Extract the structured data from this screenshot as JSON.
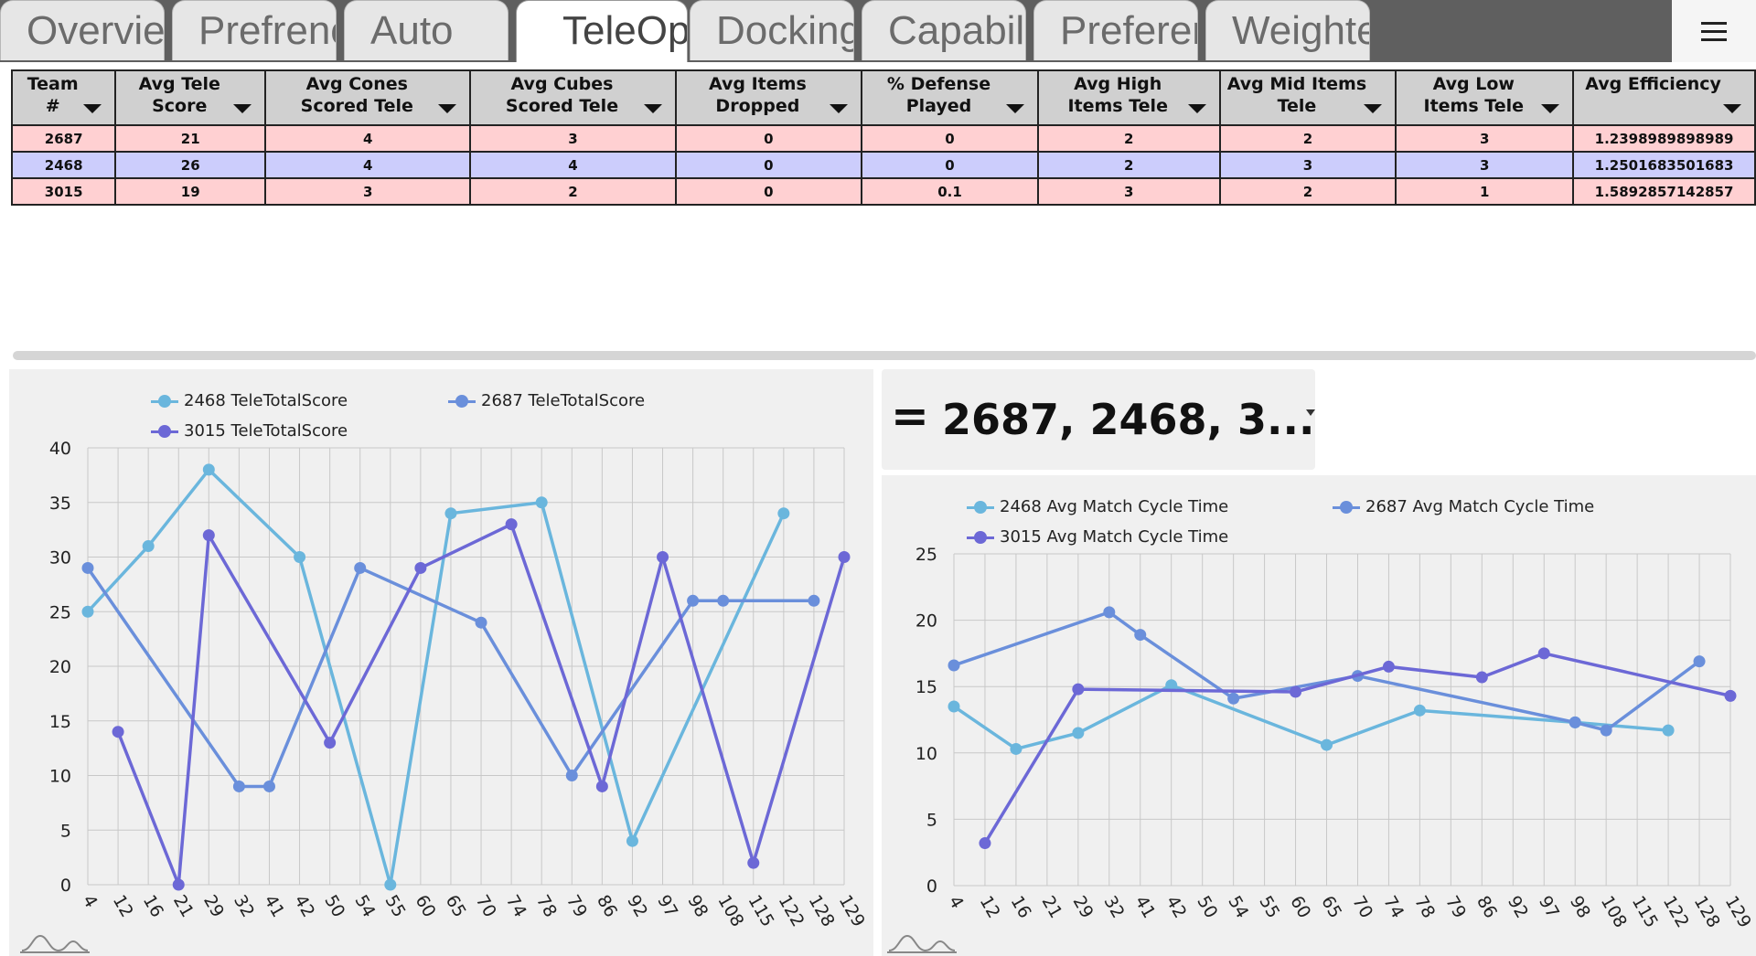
{
  "tabs": [
    {
      "label": "Overview",
      "active": false
    },
    {
      "label": "Prefrences",
      "active": false
    },
    {
      "label": "Auto",
      "active": false
    },
    {
      "label": "TeleOp",
      "active": true
    },
    {
      "label": "Docking",
      "active": false
    },
    {
      "label": "Capabilities",
      "active": false
    },
    {
      "label": "Preferences",
      "active": false
    },
    {
      "label": "Weighted",
      "active": false
    }
  ],
  "table": {
    "columns": [
      "Team #",
      "Avg Tele Score",
      "Avg Cones Scored Tele",
      "Avg Cubes Scored Tele",
      "Avg Items Dropped",
      "% Defense Played",
      "Avg High Items Tele",
      "Avg Mid Items Tele",
      "Avg Low Items Tele",
      "Avg Efficiency"
    ],
    "rows": [
      [
        "2687",
        "21",
        "4",
        "3",
        "0",
        "0",
        "2",
        "2",
        "3",
        "1.2398989898989"
      ],
      [
        "2468",
        "26",
        "4",
        "4",
        "0",
        "0",
        "2",
        "3",
        "3",
        "1.2501683501683"
      ],
      [
        "3015",
        "19",
        "3",
        "2",
        "0",
        "0.1",
        "3",
        "2",
        "1",
        "1.5892857142857"
      ]
    ]
  },
  "team_filter": {
    "equals_symbol": "=",
    "value": "2687, 2468, 3..."
  },
  "colors": {
    "series_2468": "#6ab6dd",
    "series_2687": "#6a8fdb",
    "series_3015": "#6c68d6"
  },
  "icons": {
    "menu": "hamburger-icon",
    "chart_wave": "wave-icon"
  },
  "chart_data": [
    {
      "type": "line",
      "x": [
        "4",
        "12",
        "16",
        "21",
        "29",
        "32",
        "41",
        "42",
        "50",
        "54",
        "55",
        "60",
        "65",
        "70",
        "74",
        "78",
        "79",
        "86",
        "92",
        "97",
        "98",
        "108",
        "115",
        "122",
        "128",
        "129"
      ],
      "ylim": [
        0,
        40
      ],
      "yticks": [
        0,
        5,
        10,
        15,
        20,
        25,
        30,
        35,
        40
      ],
      "legend_position": "top",
      "grid": true,
      "series": [
        {
          "name": "2468 TeleTotalScore",
          "color_key": "series_2468",
          "points": [
            [
              0,
              25
            ],
            [
              2,
              31
            ],
            [
              4,
              38
            ],
            [
              7,
              30
            ],
            [
              10,
              0
            ],
            [
              12,
              34
            ],
            [
              15,
              35
            ],
            [
              18,
              4
            ],
            [
              23,
              34
            ]
          ]
        },
        {
          "name": "2687 TeleTotalScore",
          "color_key": "series_2687",
          "points": [
            [
              0,
              29
            ],
            [
              5,
              9
            ],
            [
              6,
              9
            ],
            [
              9,
              29
            ],
            [
              13,
              24
            ],
            [
              16,
              10
            ],
            [
              20,
              26
            ],
            [
              21,
              26
            ],
            [
              24,
              26
            ]
          ]
        },
        {
          "name": "3015 TeleTotalScore",
          "color_key": "series_3015",
          "points": [
            [
              1,
              14
            ],
            [
              3,
              0
            ],
            [
              4,
              32
            ],
            [
              8,
              13
            ],
            [
              11,
              29
            ],
            [
              14,
              33
            ],
            [
              17,
              9
            ],
            [
              19,
              30
            ],
            [
              22,
              2
            ],
            [
              25,
              30
            ]
          ]
        }
      ]
    },
    {
      "type": "line",
      "x": [
        "4",
        "12",
        "16",
        "21",
        "29",
        "32",
        "41",
        "42",
        "50",
        "54",
        "55",
        "60",
        "65",
        "70",
        "74",
        "78",
        "79",
        "86",
        "92",
        "97",
        "98",
        "108",
        "115",
        "122",
        "128",
        "129"
      ],
      "ylim": [
        0,
        25
      ],
      "yticks": [
        0,
        5,
        10,
        15,
        20,
        25
      ],
      "legend_position": "top",
      "grid": true,
      "series": [
        {
          "name": "2468 Avg Match Cycle Time",
          "color_key": "series_2468",
          "points": [
            [
              0,
              13.5
            ],
            [
              2,
              10.3
            ],
            [
              4,
              11.5
            ],
            [
              7,
              15.1
            ],
            [
              12,
              10.6
            ],
            [
              15,
              13.2
            ],
            [
              20,
              12.3
            ],
            [
              23,
              11.7
            ]
          ]
        },
        {
          "name": "2687 Avg Match Cycle Time",
          "color_key": "series_2687",
          "points": [
            [
              0,
              16.6
            ],
            [
              5,
              20.6
            ],
            [
              6,
              18.9
            ],
            [
              9,
              14.1
            ],
            [
              13,
              15.8
            ],
            [
              20,
              12.3
            ],
            [
              21,
              11.7
            ],
            [
              24,
              16.9
            ]
          ]
        },
        {
          "name": "3015 Avg Match Cycle Time",
          "color_key": "series_3015",
          "points": [
            [
              1,
              3.2
            ],
            [
              4,
              14.8
            ],
            [
              11,
              14.6
            ],
            [
              14,
              16.5
            ],
            [
              17,
              15.7
            ],
            [
              19,
              17.5
            ],
            [
              25,
              14.3
            ]
          ]
        }
      ]
    }
  ]
}
